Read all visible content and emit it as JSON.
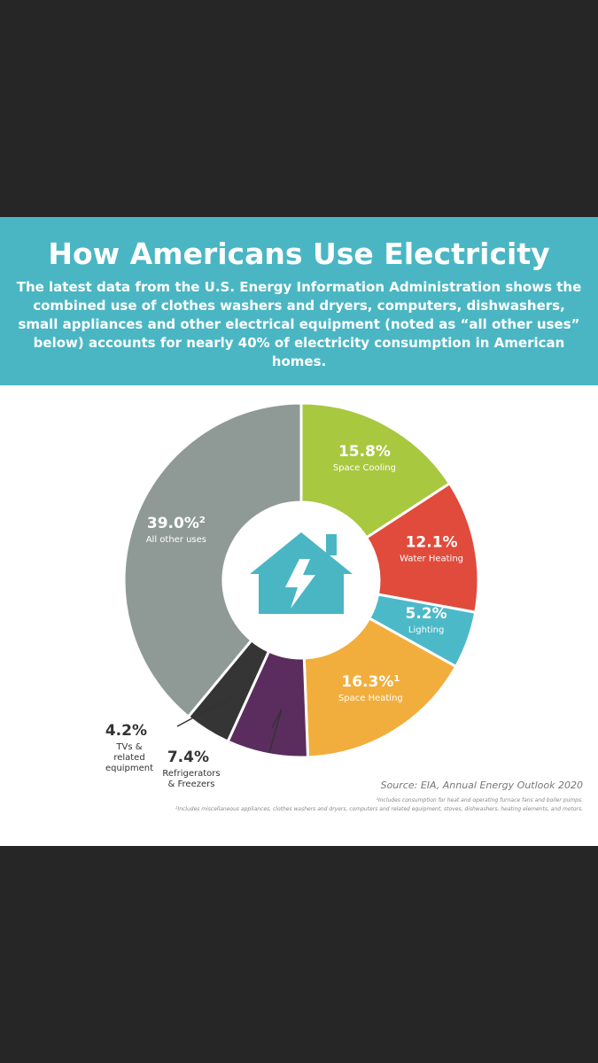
{
  "header": {
    "title": "How Americans Use Electricity",
    "subtitle": "The latest data from the U.S. Energy Information Administration shows the combined use of clothes washers and dryers, computers, dishwashers, small appliances and other electrical equipment (noted as “all other uses” below) accounts for nearly 40% of electricity consumption in American homes."
  },
  "chart_data": {
    "type": "donut",
    "categories": [
      "Space Cooling",
      "Water Heating",
      "Lighting",
      "Space Heating",
      "Refrigerators & Freezers",
      "TVs & related equipment",
      "All other uses"
    ],
    "values": [
      15.8,
      12.1,
      5.2,
      16.3,
      7.4,
      4.2,
      39.0
    ],
    "value_labels": [
      "15.8%",
      "12.1%",
      "5.2%",
      "16.3%",
      "7.4%",
      "4.2%",
      "39.0%"
    ],
    "label_superscripts": [
      null,
      null,
      null,
      "1",
      null,
      null,
      "2"
    ],
    "colors": [
      "#a8c83f",
      "#e04b3c",
      "#4cb9c8",
      "#f2ae3d",
      "#5b2d5f",
      "#353535",
      "#8f9a97"
    ]
  },
  "footer": {
    "source": "Source: EIA, Annual Energy Outlook 2020",
    "notes": [
      "¹Includes consumption for heat and operating furnace fans and boiler pumps.",
      "²Includes miscellaneous appliances, clothes washers and dryers, computers and related equipment, stoves, dishwashers, heating elements, and motors."
    ]
  }
}
